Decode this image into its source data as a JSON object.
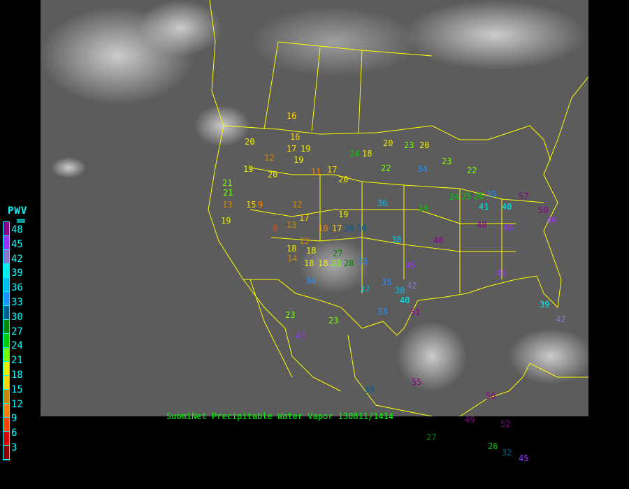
{
  "title": "SuomiNet Precipitable Water Vapor 130811/1414",
  "legend": {
    "title": "PWV",
    "unit": "mm",
    "ticks": [
      "48",
      "45",
      "42",
      "39",
      "36",
      "33",
      "30",
      "27",
      "24",
      "21",
      "18",
      "15",
      "12",
      "9",
      "6",
      "3"
    ],
    "colors": [
      "#880088",
      "#9933ff",
      "#8877cc",
      "#00eeee",
      "#00bbee",
      "#1e90ff",
      "#005f8f",
      "#008800",
      "#00cc00",
      "#77ff00",
      "#eeee00",
      "#ffd700",
      "#cc8800",
      "#ff8000",
      "#ff4400",
      "#dd0000",
      "#880000"
    ]
  },
  "map": {
    "background": "#5a5a5a",
    "border_color": "#ffff00"
  },
  "stations": [
    "16",
    "20",
    "19",
    "17",
    "22",
    "23",
    "24",
    "18",
    "20",
    "23",
    "22",
    "34",
    "21",
    "19",
    "20",
    "19",
    "17",
    "13",
    "15",
    "12",
    "11",
    "9",
    "8",
    "13",
    "17",
    "10",
    "19",
    "13",
    "18",
    "18",
    "17",
    "18",
    "14",
    "18",
    "23",
    "20",
    "28",
    "30",
    "33",
    "34",
    "36",
    "35",
    "37",
    "38",
    "40",
    "42",
    "45",
    "48",
    "51",
    "48",
    "55",
    "23",
    "23",
    "27",
    "30",
    "30",
    "26",
    "32",
    "45",
    "52",
    "50",
    "49",
    "47",
    "42",
    "25",
    "24",
    "26",
    "35",
    "41",
    "39",
    "45",
    "57",
    "50",
    "46",
    "45",
    "40",
    "36",
    "33",
    "27",
    "24",
    "21",
    "19",
    "20",
    "16",
    "12"
  ]
}
